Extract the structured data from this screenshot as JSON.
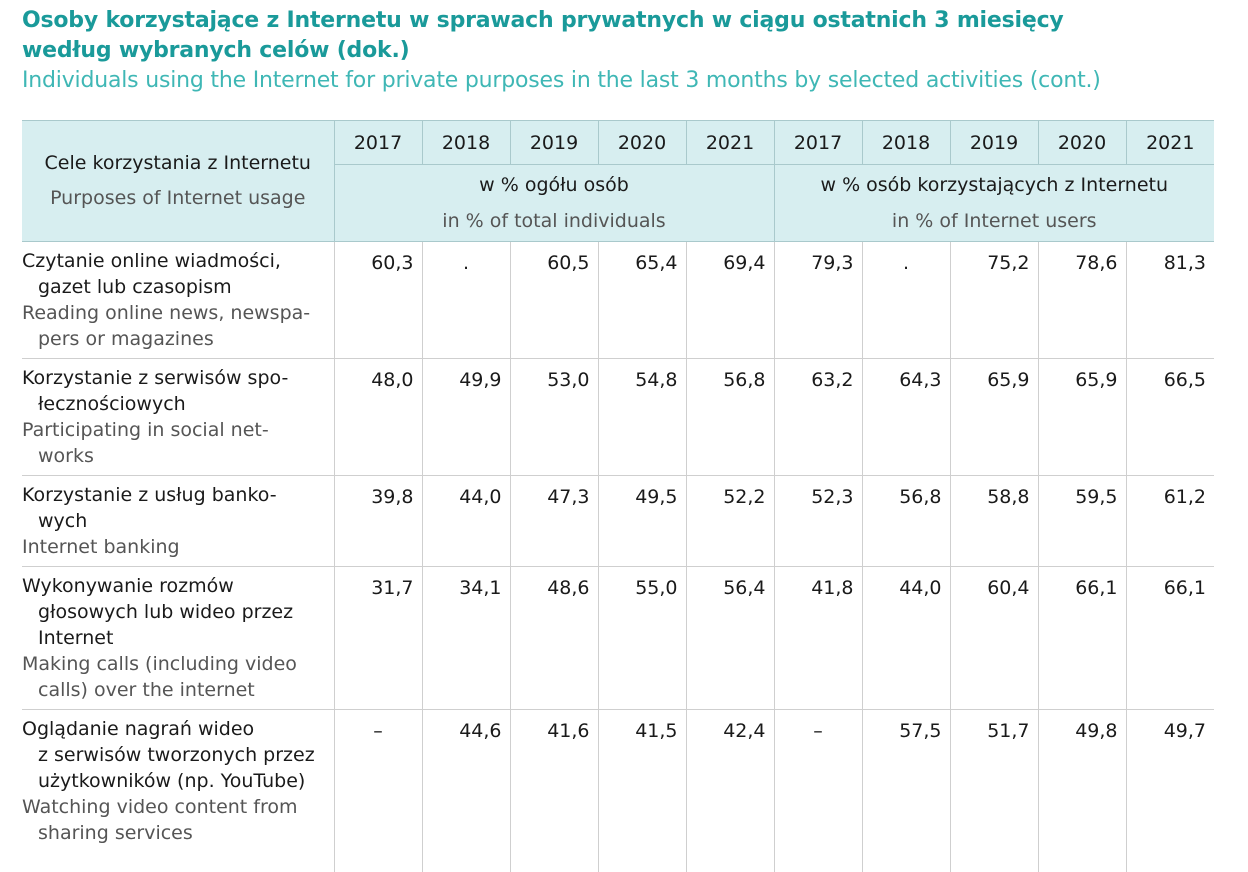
{
  "title_pl_line1": "Osoby korzystające z Internetu w sprawach prywatnych w ciągu ostatnich 3 miesięcy",
  "title_pl_line2": "według wybranych celów  (dok.)",
  "title_en": "Individuals using the Internet for private purposes in the last 3 months by selected activities  (cont.)",
  "header": {
    "label_pl": "Cele korzystania z Internetu",
    "label_en": "Purposes of Internet usage",
    "years": [
      "2017",
      "2018",
      "2019",
      "2020",
      "2021",
      "2017",
      "2018",
      "2019",
      "2020",
      "2021"
    ],
    "group1_pl": "w % ogółu osób",
    "group1_en": "in % of total individuals",
    "group2_pl": "w % osób korzystających z Internetu",
    "group2_en": "in % of Internet users"
  },
  "rows": [
    {
      "label_pl": [
        "Czytanie online wiadmości,",
        "gazet lub czasopism"
      ],
      "label_en": [
        "Reading online news, newspa-",
        "pers or magazines"
      ],
      "values": [
        "60,3",
        ".",
        "60,5",
        "65,4",
        "69,4",
        "79,3",
        ".",
        "75,2",
        "78,6",
        "81,3"
      ]
    },
    {
      "label_pl": [
        "Korzystanie z serwisów spo-",
        "łecznościowych"
      ],
      "label_en": [
        "Participating in social net-",
        "works"
      ],
      "values": [
        "48,0",
        "49,9",
        "53,0",
        "54,8",
        "56,8",
        "63,2",
        "64,3",
        "65,9",
        "65,9",
        "66,5"
      ]
    },
    {
      "label_pl": [
        "Korzystanie z usług banko-",
        "wych"
      ],
      "label_en": [
        "Internet banking"
      ],
      "values": [
        "39,8",
        "44,0",
        "47,3",
        "49,5",
        "52,2",
        "52,3",
        "56,8",
        "58,8",
        "59,5",
        "61,2"
      ]
    },
    {
      "label_pl": [
        "Wykonywanie rozmów",
        "głosowych lub wideo przez",
        "Internet"
      ],
      "label_en": [
        "Making calls (including video",
        "calls) over the internet"
      ],
      "values": [
        "31,7",
        "34,1",
        "48,6",
        "55,0",
        "56,4",
        "41,8",
        "44,0",
        "60,4",
        "66,1",
        "66,1"
      ]
    },
    {
      "label_pl": [
        "Oglądanie nagrań wideo",
        "z serwisów tworzonych przez",
        "użytkowników (np. YouTube)"
      ],
      "label_en": [
        "Watching video content from",
        "sharing services"
      ],
      "values": [
        "–",
        "44,6",
        "41,6",
        "41,5",
        "42,4",
        "–",
        "57,5",
        "51,7",
        "49,8",
        "49,7"
      ]
    }
  ]
}
